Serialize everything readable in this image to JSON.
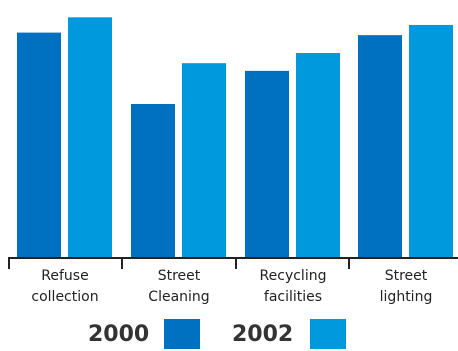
{
  "chart_data": {
    "type": "bar",
    "categories": [
      [
        "Refuse",
        "collection"
      ],
      [
        "Street",
        "Cleaning"
      ],
      [
        "Recycling",
        "facilities"
      ],
      [
        "Street",
        "lighting"
      ]
    ],
    "series": [
      {
        "name": "2000",
        "values": [
          88,
          60,
          73,
          87
        ],
        "color": "#0070c0"
      },
      {
        "name": "2002",
        "values": [
          94,
          76,
          80,
          91
        ],
        "color": "#0099dd"
      }
    ],
    "ylim": [
      0,
      100
    ],
    "grid": false,
    "legend": "bottom"
  }
}
